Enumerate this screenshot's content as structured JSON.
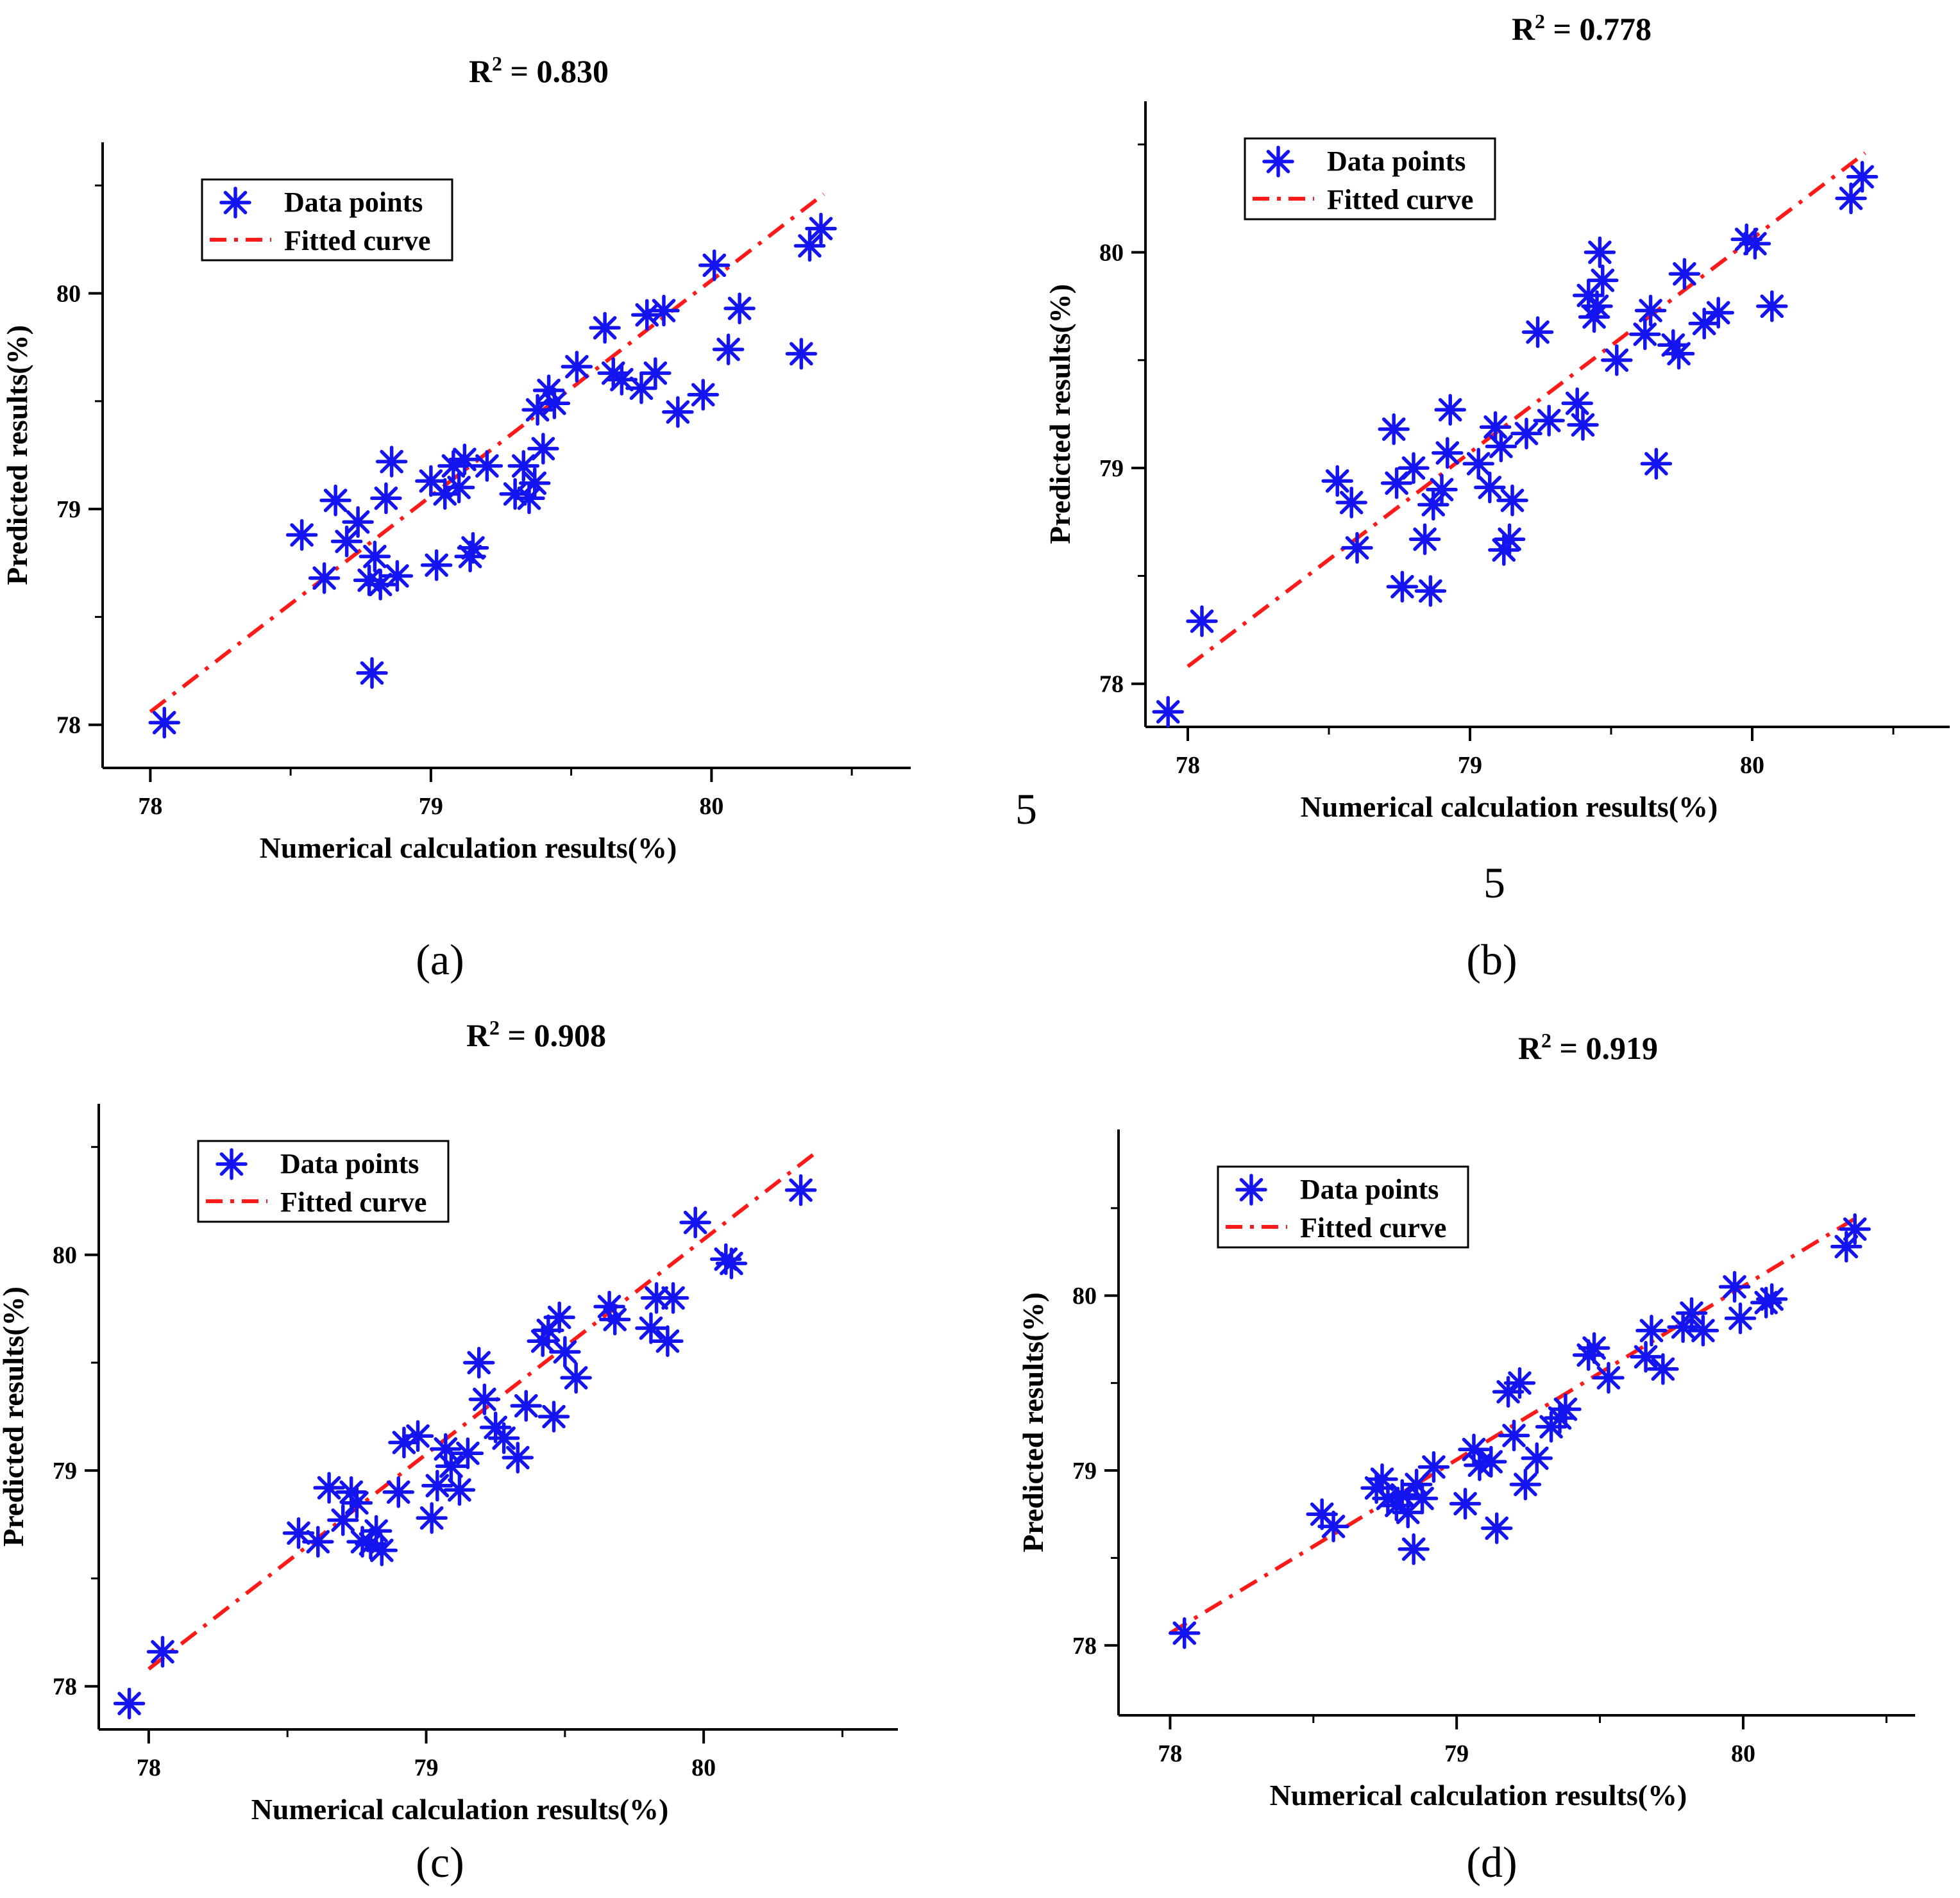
{
  "figure": {
    "stray_marks": [
      "5",
      "5"
    ]
  },
  "chart_data": [
    {
      "id": "a",
      "type": "scatter",
      "caption": "(a)",
      "title": "R² = 0.830",
      "xlabel": "Numerical calculation results(%)",
      "ylabel": "Predicted results(%)",
      "xticks": [
        "78",
        "79",
        "80"
      ],
      "yticks": [
        "78",
        "79",
        "80"
      ],
      "xlim": [
        77.83,
        80.71
      ],
      "ylim": [
        77.8,
        80.7
      ],
      "legend": {
        "placement": "top-left",
        "entries": [
          "Data points",
          "Fitted curve"
        ]
      },
      "series": [
        {
          "name": "Data points",
          "marker": "asterisk",
          "color": "#1414f0",
          "x": [
            78.05,
            78.54,
            78.62,
            78.66,
            78.7,
            78.74,
            78.78,
            78.8,
            78.82,
            78.84,
            78.86,
            78.88,
            78.79,
            79.0,
            79.02,
            79.05,
            79.08,
            79.1,
            79.12,
            79.14,
            79.15,
            79.2,
            79.3,
            79.33,
            79.35,
            79.37,
            79.38,
            79.4,
            79.42,
            79.44,
            79.52,
            79.62,
            79.65,
            79.68,
            79.75,
            79.77,
            79.8,
            79.83,
            79.88,
            79.97,
            80.01,
            80.06,
            80.1,
            80.32,
            80.35,
            80.39
          ],
          "y": [
            78.01,
            78.88,
            78.68,
            79.04,
            78.85,
            78.94,
            78.67,
            78.78,
            78.65,
            79.05,
            79.22,
            78.69,
            78.24,
            79.13,
            78.74,
            79.07,
            79.2,
            79.1,
            79.23,
            78.78,
            78.82,
            79.2,
            79.07,
            79.2,
            79.05,
            79.12,
            79.46,
            79.28,
            79.55,
            79.49,
            79.66,
            79.84,
            79.63,
            79.6,
            79.56,
            79.9,
            79.63,
            79.92,
            79.45,
            79.53,
            80.13,
            79.74,
            79.93,
            79.72,
            80.22,
            80.3
          ]
        },
        {
          "name": "Fitted curve",
          "style": "dash-dot",
          "color": "#ff1a1a",
          "x": [
            78.0,
            80.4
          ],
          "y": [
            78.06,
            80.46
          ]
        }
      ]
    },
    {
      "id": "b",
      "type": "scatter",
      "caption": "(b)",
      "title": "R² = 0.778",
      "xlabel": "Numerical calculation results(%)",
      "ylabel": "Predicted results(%)",
      "xticks": [
        "78",
        "79",
        "80"
      ],
      "yticks": [
        "78",
        "79",
        "80"
      ],
      "xlim": [
        77.85,
        80.7
      ],
      "ylim": [
        77.8,
        80.7
      ],
      "legend": {
        "placement": "top-left",
        "entries": [
          "Data points",
          "Fitted curve"
        ]
      },
      "series": [
        {
          "name": "Data points",
          "marker": "asterisk",
          "color": "#1414f0",
          "x": [
            77.93,
            78.05,
            78.53,
            78.58,
            78.6,
            78.73,
            78.74,
            78.76,
            78.8,
            78.84,
            78.86,
            78.87,
            78.9,
            78.92,
            78.93,
            79.03,
            79.07,
            79.09,
            79.11,
            79.12,
            79.14,
            79.15,
            79.2,
            79.24,
            79.28,
            79.38,
            79.4,
            79.42,
            79.44,
            79.45,
            79.46,
            79.47,
            79.52,
            79.62,
            79.64,
            79.66,
            79.72,
            79.74,
            79.76,
            79.83,
            79.88,
            79.98,
            80.01,
            80.07,
            80.35,
            80.39
          ],
          "y": [
            77.87,
            78.29,
            78.94,
            78.84,
            78.63,
            79.18,
            78.93,
            78.45,
            79.0,
            78.67,
            78.43,
            78.83,
            78.9,
            79.07,
            79.27,
            79.02,
            78.91,
            79.19,
            79.1,
            78.62,
            78.67,
            78.85,
            79.16,
            79.63,
            79.22,
            79.3,
            79.2,
            79.8,
            79.7,
            79.75,
            80.0,
            79.87,
            79.5,
            79.62,
            79.73,
            79.02,
            79.57,
            79.53,
            79.9,
            79.67,
            79.72,
            80.06,
            80.04,
            79.75,
            80.25,
            80.35
          ]
        },
        {
          "name": "Fitted curve",
          "style": "dash-dot",
          "color": "#ff1a1a",
          "x": [
            78.0,
            80.4
          ],
          "y": [
            78.08,
            80.46
          ]
        }
      ]
    },
    {
      "id": "c",
      "type": "scatter",
      "caption": "(c)",
      "title": "R² = 0.908",
      "xlabel": "Numerical calculation results(%)",
      "ylabel": "Predicted results(%)",
      "xticks": [
        "78",
        "79",
        "80"
      ],
      "yticks": [
        "78",
        "79",
        "80"
      ],
      "xlim": [
        77.82,
        80.7
      ],
      "ylim": [
        77.8,
        80.7
      ],
      "legend": {
        "placement": "top-left",
        "entries": [
          "Data points",
          "Fitted curve"
        ]
      },
      "series": [
        {
          "name": "Data points",
          "marker": "asterisk",
          "color": "#1414f0",
          "x": [
            77.93,
            78.05,
            78.54,
            78.61,
            78.65,
            78.7,
            78.73,
            78.75,
            78.77,
            78.8,
            78.82,
            78.84,
            78.9,
            78.92,
            78.97,
            79.02,
            79.04,
            79.07,
            79.09,
            79.12,
            79.15,
            79.19,
            79.21,
            79.25,
            79.28,
            79.33,
            79.36,
            79.42,
            79.44,
            79.46,
            79.48,
            79.5,
            79.54,
            79.66,
            79.68,
            79.81,
            79.83,
            79.87,
            79.89,
            79.97,
            80.08,
            80.1,
            80.35
          ],
          "y": [
            77.92,
            78.16,
            78.71,
            78.67,
            78.92,
            78.77,
            78.9,
            78.85,
            78.67,
            78.66,
            78.72,
            78.63,
            78.9,
            79.13,
            79.16,
            78.78,
            78.93,
            79.1,
            79.02,
            78.91,
            79.08,
            79.5,
            79.33,
            79.2,
            79.15,
            79.06,
            79.3,
            79.6,
            79.65,
            79.25,
            79.71,
            79.55,
            79.43,
            79.76,
            79.7,
            79.66,
            79.8,
            79.6,
            79.8,
            80.15,
            79.98,
            79.96,
            80.3
          ]
        },
        {
          "name": "Fitted curve",
          "style": "dash-dot",
          "color": "#ff1a1a",
          "x": [
            78.0,
            80.4
          ],
          "y": [
            78.08,
            80.47
          ]
        }
      ]
    },
    {
      "id": "d",
      "type": "scatter",
      "caption": "(d)",
      "title": "R² = 0.919",
      "xlabel": "Numerical calculation results(%)",
      "ylabel": "Predicted results(%)",
      "xticks": [
        "78",
        "79",
        "80"
      ],
      "yticks": [
        "78",
        "79",
        "80"
      ],
      "xlim": [
        77.82,
        80.6
      ],
      "ylim": [
        77.6,
        80.95
      ],
      "legend": {
        "placement": "top-left",
        "entries": [
          "Data points",
          "Fitted curve"
        ]
      },
      "series": [
        {
          "name": "Data points",
          "marker": "asterisk",
          "color": "#1414f0",
          "x": [
            78.05,
            78.53,
            78.57,
            78.72,
            78.74,
            78.76,
            78.79,
            78.81,
            78.83,
            78.85,
            78.86,
            78.88,
            78.92,
            79.03,
            79.06,
            79.08,
            79.12,
            79.14,
            79.18,
            79.2,
            79.22,
            79.24,
            79.28,
            79.33,
            79.36,
            79.38,
            79.46,
            79.48,
            79.53,
            79.66,
            79.68,
            79.72,
            79.79,
            79.82,
            79.86,
            79.97,
            79.99,
            80.08,
            80.1,
            80.36,
            80.39
          ],
          "y": [
            78.07,
            78.75,
            78.68,
            78.9,
            78.95,
            78.84,
            78.8,
            78.86,
            78.76,
            78.55,
            78.92,
            78.84,
            79.02,
            78.81,
            79.12,
            79.03,
            79.05,
            78.67,
            79.45,
            79.2,
            79.5,
            78.92,
            79.07,
            79.25,
            79.3,
            79.35,
            79.66,
            79.7,
            79.53,
            79.65,
            79.8,
            79.58,
            79.82,
            79.9,
            79.8,
            80.05,
            79.87,
            79.96,
            79.98,
            80.28,
            80.38
          ]
        },
        {
          "name": "Fitted curve",
          "style": "dash-dot",
          "color": "#ff1a1a",
          "x": [
            78.0,
            80.4
          ],
          "y": [
            78.07,
            80.45
          ]
        }
      ]
    }
  ]
}
